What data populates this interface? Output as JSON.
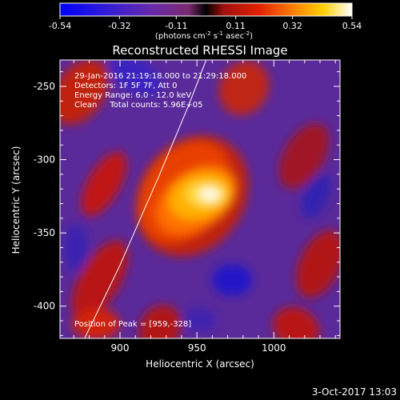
{
  "colorbar": {
    "ticks": [
      "-0.54",
      "-0.32",
      "-0.11",
      "0.11",
      "0.32",
      "0.54"
    ],
    "units": "(photons cm",
    "units_exp1": "-2",
    "units_mid": " s",
    "units_exp2": "-1",
    "units_mid2": " asec",
    "units_exp3": "-2",
    "units_end": ")",
    "range": [
      -0.54,
      0.54
    ]
  },
  "chart_data": {
    "type": "heatmap",
    "title": "Reconstructed RHESSI Image",
    "xlabel": "Heliocentric X (arcsec)",
    "ylabel": "Heliocentric Y (arcsec)",
    "xlim": [
      861,
      1043
    ],
    "ylim": [
      -422,
      -232
    ],
    "x_ticks": [
      900,
      950,
      1000
    ],
    "y_ticks": [
      -250,
      -300,
      -350,
      -400
    ],
    "peak": [
      959,
      -328
    ],
    "annotations": [
      "29-Jan-2016 21:19:18.000 to 21:29:18.000",
      "Detectors: 1F 5F 7F, Att 0",
      "Energy Range: 6.0 - 12.0 keV",
      "Clean     Total counts: 5.96E+05"
    ],
    "peak_label": "Position of Peak = [959,-328]",
    "colormap": "rainbow/hot",
    "limb_curve": [
      [
        877,
        -422
      ],
      [
        900,
        -372
      ],
      [
        925,
        -312
      ],
      [
        945,
        -262
      ],
      [
        956,
        -232
      ]
    ]
  },
  "footer": {
    "date": "3-Oct-2017 13:03"
  }
}
